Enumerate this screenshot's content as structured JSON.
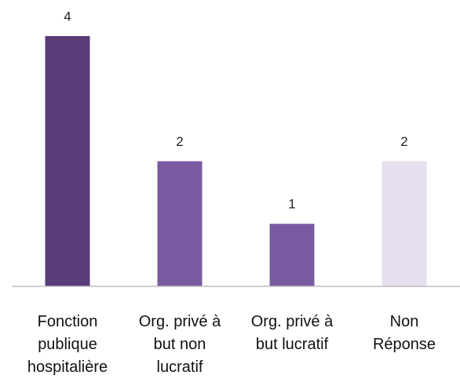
{
  "chart_data": {
    "type": "bar",
    "categories": [
      "Fonction publique hospitalière",
      "Org. privé à but non lucratif",
      "Org. privé à but lucratif",
      "Non Réponse"
    ],
    "values": [
      4,
      2,
      1,
      2
    ],
    "colors": [
      "#5a3c78",
      "#7a5ba1",
      "#7a5ba1",
      "#e6dfef"
    ]
  }
}
